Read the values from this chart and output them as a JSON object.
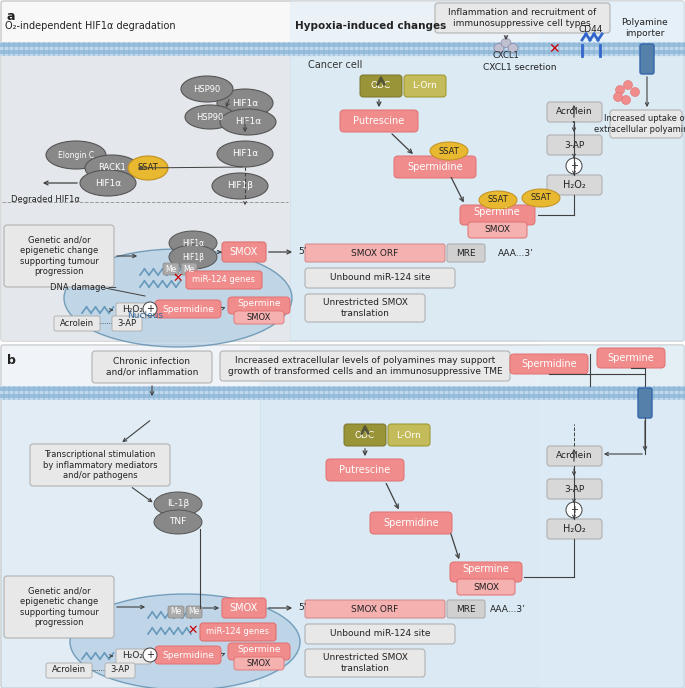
{
  "panel_a": "a",
  "panel_b": "b",
  "title_left": "O₂-independent HIF1α degradation",
  "title_right": "Hypoxia-induced changes",
  "inflammation_box": "Inflammation and recruitment of\nimmunosuppressive cell types",
  "cancer_cell": "Cancer cell",
  "odc": "ODC",
  "l_orn": "L-Orn",
  "putrescine": "Putrescine",
  "spermidine": "Spermidine",
  "spermine": "Spermine",
  "smox": "SMOX",
  "ssat": "SSAT",
  "hif1a": "HIF1α",
  "hif1b": "HIF1β",
  "hsp90": "HSP90",
  "rack1": "RACK1",
  "elongin": "Elongin C",
  "smox_orf": "SMOX ORF",
  "mre": "MRE",
  "aaa3": "AAA...3’",
  "five_prime": "5’",
  "unbound_mir": "Unbound miR-124 site",
  "unrestricted": "Unrestricted SMOX\ntranslation",
  "mir124": "miR-124 genes",
  "me": "Me",
  "acrolein": "Acrolein",
  "three_ap": "3-AP",
  "h2o2": "H₂O₂",
  "nucleus": "Nucleus",
  "dna_damage": "DNA damage —",
  "cxcl1": "CXCL1",
  "cxcl1_secr": "CXCL1 secretion",
  "cd44": "CD44",
  "polyamine_imp": "Polyamine\nimporter",
  "increased_uptake": "Increased uptake of\nextracellular polyamines",
  "genetic_change": "Genetic and/or\nepigenetic change\nsupporting tumour\nprogression",
  "chronic_infect": "Chronic infection\nand/or inflammation",
  "transcriptional": "Transcriptional stimulation\nby inflammatory mediators\nand/or pathogens",
  "increased_extra": "Increased extracellular levels of polyamines may support\ngrowth of transformed cells and an immunosuppressive TME",
  "il1b": "IL-1β",
  "tnf": "TNF",
  "degraded": "Degraded HIF1α",
  "plus_circle": "⊕"
}
